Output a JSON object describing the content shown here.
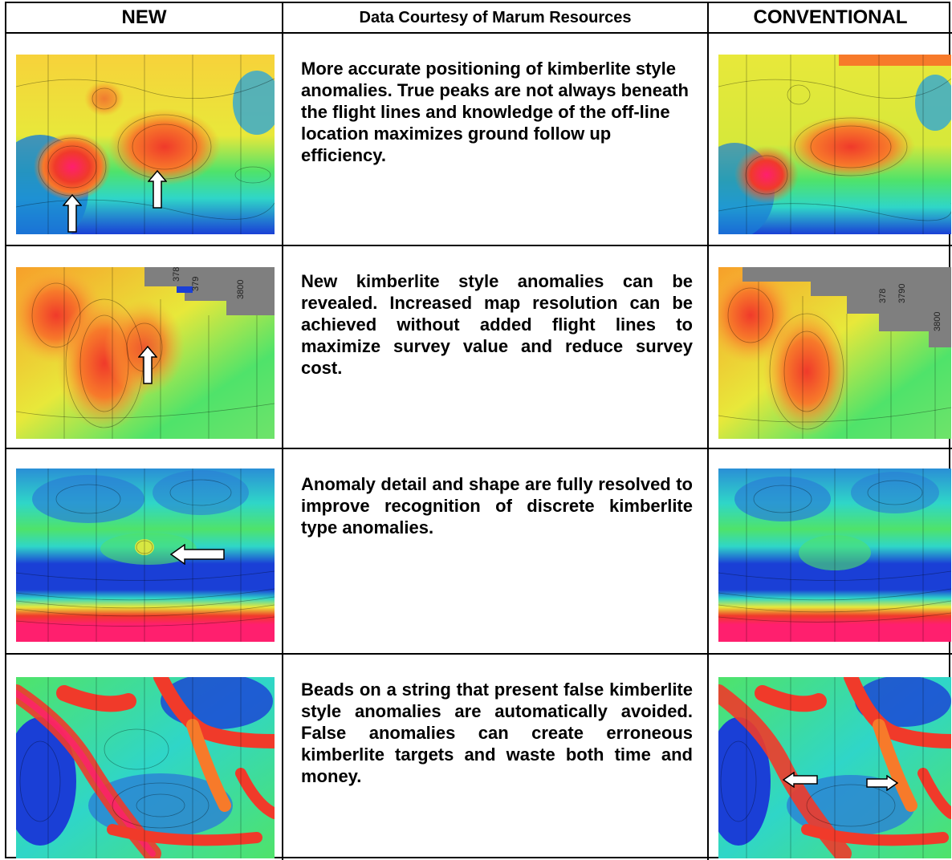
{
  "header": {
    "new_label": "NEW",
    "courtesy_label": "Data Courtesy of Marum Resources",
    "conventional_label": "CONVENTIONAL"
  },
  "rows": [
    {
      "description": "More accurate positioning of kimberlite style anomalies. True peaks are not always beneath the flight lines and knowledge of the off-line location maximizes ground follow up efficiency."
    },
    {
      "description": "New kimberlite style anomalies can be revealed. Increased map resolution can be achieved without added flight lines to maximize survey value and reduce survey cost."
    },
    {
      "description": "Anomaly detail and shape are fully resolved to improve recognition of discrete kimberlite type anomalies."
    },
    {
      "description": "Beads on a string that present false kimberlite style anomalies are automatically avoided. False anomalies can create erroneous kimberlite targets and waste both time and money."
    }
  ],
  "map_labels": {
    "row2_new": [
      "378",
      "379",
      "3800"
    ],
    "row2_conventional": [
      "378",
      "3790",
      "3800"
    ]
  },
  "colors": {
    "magenta": "#ff1f6e",
    "red": "#f03a2a",
    "orange": "#f77a2a",
    "yellow": "#e8e83a",
    "green": "#4fe36a",
    "cyan": "#2fd6c8",
    "blue": "#1a3fd6",
    "grey_mask": "#7f7f7f"
  },
  "icons": [
    "up-arrow-icon",
    "left-arrow-icon",
    "right-arrow-icon"
  ]
}
